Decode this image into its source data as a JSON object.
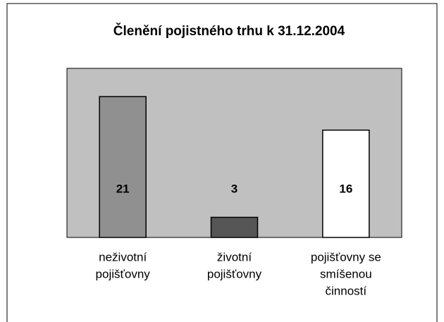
{
  "chart_data": {
    "type": "bar",
    "title": "Členění pojistného trhu k 31.12.2004",
    "categories": [
      [
        "neživotní",
        "pojišťovny"
      ],
      [
        "životní",
        "pojišťovny"
      ],
      [
        "pojišťovny se",
        "smíšenou",
        "činností"
      ]
    ],
    "values": [
      21,
      3,
      16
    ],
    "colors": [
      "#909090",
      "#565656",
      "#ffffff"
    ],
    "plot_background": "#c0c0c0"
  }
}
